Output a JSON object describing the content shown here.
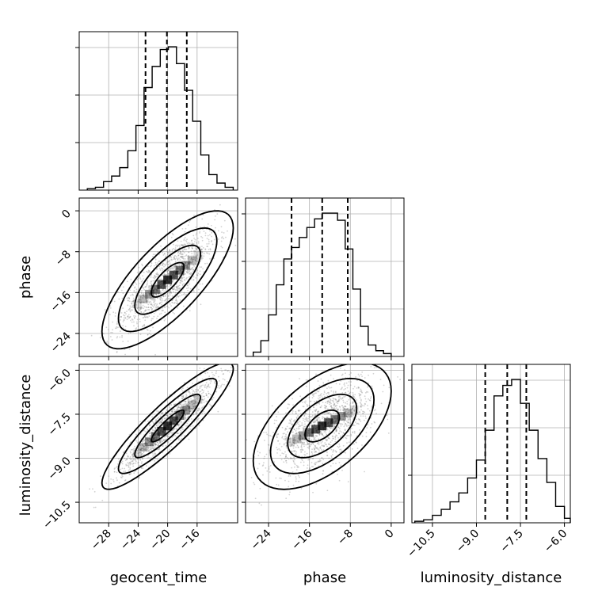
{
  "chart_data": {
    "type": "corner",
    "parameters": [
      {
        "key": "geocent_time",
        "label": "geocent_time",
        "range": [
          -32,
          -10.5
        ],
        "ticks": [
          -28,
          -24,
          -20,
          -16
        ],
        "tick_labels": [
          "−28",
          "−24",
          "−20",
          "−16"
        ],
        "mean": -20,
        "sigma": 3.3,
        "quantiles": [
          -23.0,
          -20.1,
          -17.4
        ],
        "histogram": {
          "bin_edges": [
            -30.9,
            -29.8,
            -28.7,
            -27.6,
            -26.5,
            -25.4,
            -24.3,
            -23.2,
            -22.1,
            -21.0,
            -19.9,
            -18.8,
            -17.7,
            -16.6,
            -15.5,
            -14.4,
            -13.3,
            -12.2,
            -11.1
          ],
          "counts": [
            0.01,
            0.02,
            0.06,
            0.1,
            0.16,
            0.28,
            0.46,
            0.73,
            0.88,
            1.0,
            1.02,
            0.9,
            0.71,
            0.49,
            0.25,
            0.11,
            0.05,
            0.02
          ]
        }
      },
      {
        "key": "phase",
        "label": "phase",
        "range": [
          -28.5,
          2.5
        ],
        "ticks": [
          -24,
          -16,
          -8,
          0
        ],
        "tick_labels": [
          "−24",
          "−16",
          "−8",
          "0"
        ],
        "mean": -13.5,
        "sigma": 5.0,
        "quantiles": [
          -19.5,
          -13.5,
          -8.5
        ],
        "histogram": {
          "bin_edges": [
            -27.0,
            -25.5,
            -24.0,
            -22.5,
            -21.0,
            -19.5,
            -18.0,
            -16.5,
            -15.0,
            -13.5,
            -12.0,
            -10.5,
            -9.0,
            -7.5,
            -6.0,
            -4.5,
            -3.0,
            -1.5,
            0.0
          ],
          "counts": [
            0.03,
            0.11,
            0.29,
            0.5,
            0.68,
            0.76,
            0.83,
            0.9,
            0.96,
            1.0,
            1.0,
            0.95,
            0.75,
            0.47,
            0.21,
            0.08,
            0.04,
            0.02
          ]
        }
      },
      {
        "key": "luminosity_distance",
        "label": "luminosity_distance",
        "range": [
          -11.2,
          -5.8
        ],
        "ticks": [
          -10.5,
          -9.0,
          -7.5,
          -6.0
        ],
        "tick_labels": [
          "−10.5",
          "−9.0",
          "−7.5",
          "−6.0"
        ],
        "mean": -7.9,
        "sigma": 0.8,
        "quantiles": [
          -8.7,
          -7.95,
          -7.3
        ],
        "histogram": {
          "bin_edges": [
            -11.1,
            -10.8,
            -10.5,
            -10.2,
            -9.9,
            -9.6,
            -9.3,
            -9.0,
            -8.7,
            -8.4,
            -8.1,
            -7.8,
            -7.5,
            -7.2,
            -6.9,
            -6.6,
            -6.3,
            -6.0,
            -5.8
          ],
          "counts": [
            0.01,
            0.02,
            0.05,
            0.09,
            0.14,
            0.2,
            0.3,
            0.42,
            0.62,
            0.85,
            0.92,
            0.96,
            0.8,
            0.62,
            0.43,
            0.27,
            0.11,
            0.03
          ]
        }
      }
    ],
    "pairs": [
      {
        "x": "geocent_time",
        "y": "phase",
        "correlation": 0.75
      },
      {
        "x": "geocent_time",
        "y": "luminosity_distance",
        "correlation": 0.9
      },
      {
        "x": "phase",
        "y": "luminosity_distance",
        "correlation": 0.55
      }
    ],
    "contour_levels_sigma": [
      0.5,
      1.0,
      1.5,
      2.0
    ],
    "grid": true,
    "quantile_lines": "dashed",
    "colors": {
      "points": "#7f7f7f",
      "contour": "#000000",
      "density": "#000000"
    }
  }
}
